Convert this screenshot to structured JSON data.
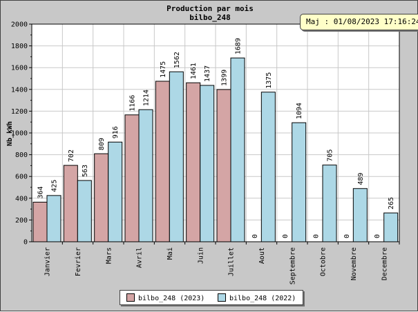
{
  "chart_data": {
    "type": "bar",
    "title": "Production par mois",
    "subtitle": "bilbo_248",
    "ylabel": "Nb_kWh",
    "xlabel": "",
    "ylim": [
      0,
      2000
    ],
    "yticks": [
      0,
      200,
      400,
      600,
      800,
      1000,
      1200,
      1400,
      1600,
      1800,
      2000
    ],
    "grid": true,
    "categories": [
      "Janvier",
      "Fevrier",
      "Mars",
      "Avril",
      "Mai",
      "Juin",
      "Juillet",
      "Aout",
      "Septembre",
      "Octobre",
      "Novembre",
      "Decembre"
    ],
    "series": [
      {
        "name": "bilbo_248 (2023)",
        "color": "#d4a5a5",
        "values": [
          364,
          702,
          809,
          1166,
          1475,
          1461,
          1399,
          0,
          0,
          0,
          0,
          0
        ]
      },
      {
        "name": "bilbo_248 (2022)",
        "color": "#add8e6",
        "values": [
          425,
          563,
          916,
          1214,
          1562,
          1437,
          1689,
          1375,
          1094,
          705,
          489,
          265
        ]
      }
    ],
    "legend_position": "bottom-center"
  },
  "badge": {
    "text": "Maj : 01/08/2023 17:16:24"
  }
}
